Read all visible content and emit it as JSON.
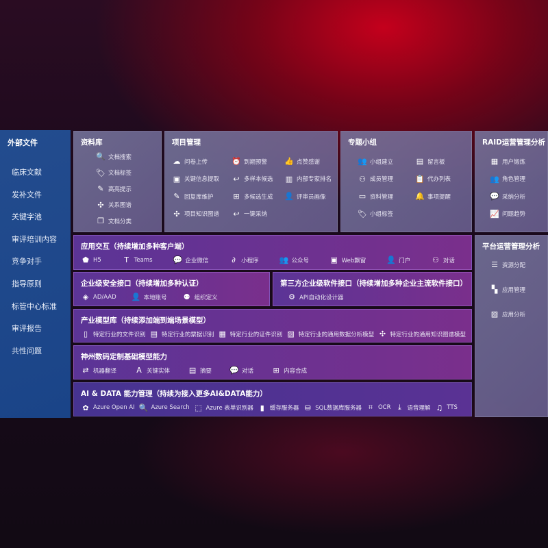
{
  "sidebar": {
    "title": "外部文件",
    "items": [
      "临床文献",
      "发补文件",
      "关键字池",
      "审评培训内容",
      "竞争对手",
      "指导原则",
      "标管中心标准",
      "审评报告",
      "共性问题"
    ]
  },
  "library": {
    "title": "资料库",
    "items": [
      {
        "icon": "doc-search-icon",
        "label": "文档搜索"
      },
      {
        "icon": "tag-icon",
        "label": "文档标签"
      },
      {
        "icon": "pen-icon",
        "label": "高亮提示"
      },
      {
        "icon": "graph-icon",
        "label": "关系图谱"
      },
      {
        "icon": "copy-icon",
        "label": "文档分类"
      }
    ]
  },
  "project": {
    "title": "项目管理",
    "items": [
      {
        "icon": "cloud-upload-icon",
        "label": "问卷上传"
      },
      {
        "icon": "alarm-icon",
        "label": "到期预警"
      },
      {
        "icon": "thumbs-up-icon",
        "label": "点赞感谢"
      },
      {
        "icon": "window-icon",
        "label": "关键信息提取"
      },
      {
        "icon": "reply-icon",
        "label": "多样本候选"
      },
      {
        "icon": "ranking-icon",
        "label": "内部专家排名"
      },
      {
        "icon": "pen-icon",
        "label": "回复库维护"
      },
      {
        "icon": "puzzle-icon",
        "label": "多候选生成"
      },
      {
        "icon": "user-icon",
        "label": "评审员画像"
      },
      {
        "icon": "graph-icon",
        "label": "项目知识图谱"
      },
      {
        "icon": "reply-icon",
        "label": "一键采纳"
      }
    ]
  },
  "group": {
    "title": "专题小组",
    "items": [
      {
        "icon": "users-icon",
        "label": "小组建立"
      },
      {
        "icon": "bbs-icon",
        "label": "留言板"
      },
      {
        "icon": "user-add-icon",
        "label": "成员管理"
      },
      {
        "icon": "clipboard-icon",
        "label": "代办列表"
      },
      {
        "icon": "folder-icon",
        "label": "资料管理"
      },
      {
        "icon": "bell-icon",
        "label": "事项提醒"
      },
      {
        "icon": "tag-icon",
        "label": "小组标签"
      }
    ]
  },
  "raid": {
    "title": "RAID运营管理分析",
    "items": [
      {
        "icon": "id-card-icon",
        "label": "用户锻炼"
      },
      {
        "icon": "users-icon",
        "label": "角色管理"
      },
      {
        "icon": "qa-icon",
        "label": "采纳分析"
      },
      {
        "icon": "trend-icon",
        "label": "问题趋势"
      }
    ]
  },
  "platform": {
    "title": "平台运营管理分析",
    "items": [
      {
        "icon": "checklist-icon",
        "label": "资源分配"
      },
      {
        "icon": "apps-icon",
        "label": "应用管理"
      },
      {
        "icon": "chart-icon",
        "label": "应用分析"
      }
    ]
  },
  "app": {
    "title": "应用交互（持续增加多种客户端）",
    "items": [
      {
        "icon": "html5-icon",
        "label": "H5"
      },
      {
        "icon": "teams-icon",
        "label": "Teams"
      },
      {
        "icon": "wechat-icon",
        "label": "企业微信"
      },
      {
        "icon": "miniprogram-icon",
        "label": "小程序"
      },
      {
        "icon": "users-icon",
        "label": "公众号"
      },
      {
        "icon": "window-icon",
        "label": "Web飘窗"
      },
      {
        "icon": "portal-icon",
        "label": "门户"
      },
      {
        "icon": "chat-users-icon",
        "label": "对话"
      }
    ]
  },
  "security": {
    "title": "企业级安全接口（持续增加多种认证）",
    "items": [
      {
        "icon": "ad-icon",
        "label": "AD/AAD"
      },
      {
        "icon": "local-account-icon",
        "label": "本地账号"
      },
      {
        "icon": "org-icon",
        "label": "组织定义"
      }
    ]
  },
  "thirdparty": {
    "title": "第三方企业级软件接口（持续增加多种企业主流软件接口）",
    "items": [
      {
        "icon": "gear-icon",
        "label": "API自动化设计器"
      }
    ]
  },
  "industry": {
    "title": "产业模型库（持续添加端到端场景模型）",
    "items": [
      {
        "icon": "file-icon",
        "label": "特定行业的文件识别"
      },
      {
        "icon": "receipt-icon",
        "label": "特定行业的票据识别"
      },
      {
        "icon": "id-card-icon",
        "label": "特定行业的证件识别"
      },
      {
        "icon": "image-icon",
        "label": "特定行业的通用数据分析模型"
      },
      {
        "icon": "graph-icon",
        "label": "特定行业的通用知识图谱模型"
      }
    ]
  },
  "base": {
    "title": "神州数码定制基础模型能力",
    "items": [
      {
        "icon": "translate-icon",
        "label": "机器翻译"
      },
      {
        "icon": "entity-icon",
        "label": "关键实体"
      },
      {
        "icon": "summary-icon",
        "label": "摘要"
      },
      {
        "icon": "chat-icon",
        "label": "对话"
      },
      {
        "icon": "puzzle-icon",
        "label": "内容合成"
      }
    ]
  },
  "ai": {
    "title": "AI & DATA 能力管理（持续为接入更多AI&DATA能力）",
    "items": [
      {
        "icon": "openai-icon",
        "label": "Azure Open AI"
      },
      {
        "icon": "doc-search-icon",
        "label": "Azure Search"
      },
      {
        "icon": "form-icon",
        "label": "Azure 表单识别器"
      },
      {
        "icon": "cache-icon",
        "label": "缓存服务器"
      },
      {
        "icon": "database-icon",
        "label": "SQL数据库服务器"
      },
      {
        "icon": "ocr-icon",
        "label": "OCR"
      },
      {
        "icon": "speech-icon",
        "label": "语音理解"
      },
      {
        "icon": "tts-icon",
        "label": "TTS"
      }
    ]
  }
}
